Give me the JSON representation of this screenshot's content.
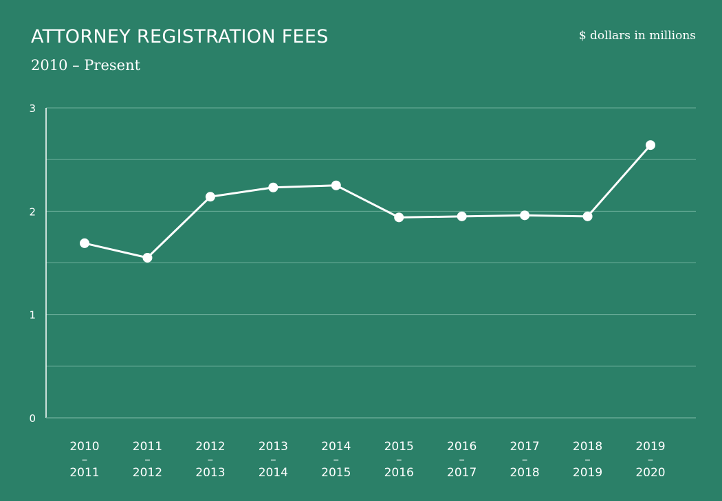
{
  "chart_data": {
    "type": "line",
    "title": "ATTORNEY REGISTRATION FEES",
    "subtitle": "2010 – Present",
    "unit_label": "$ dollars in millions",
    "categories": [
      [
        "2010",
        "–",
        "2011"
      ],
      [
        "2011",
        "–",
        "2012"
      ],
      [
        "2012",
        "–",
        "2013"
      ],
      [
        "2013",
        "–",
        "2014"
      ],
      [
        "2014",
        "–",
        "2015"
      ],
      [
        "2015",
        "–",
        "2016"
      ],
      [
        "2016",
        "–",
        "2017"
      ],
      [
        "2017",
        "–",
        "2018"
      ],
      [
        "2018",
        "–",
        "2019"
      ],
      [
        "2019",
        "–",
        "2020"
      ]
    ],
    "values": [
      1.69,
      1.55,
      2.14,
      2.23,
      2.25,
      1.94,
      1.95,
      1.96,
      1.95,
      2.64
    ],
    "ylim": [
      0,
      3
    ],
    "yticks": [
      0,
      0.5,
      1,
      1.5,
      2,
      2.5,
      3
    ],
    "ytick_labels": [
      "0",
      "",
      "1",
      "",
      "2",
      "",
      "3"
    ],
    "grid": true,
    "colors": {
      "background": "#2b8068",
      "line": "#ffffff",
      "grid": "#6fb19d"
    }
  }
}
